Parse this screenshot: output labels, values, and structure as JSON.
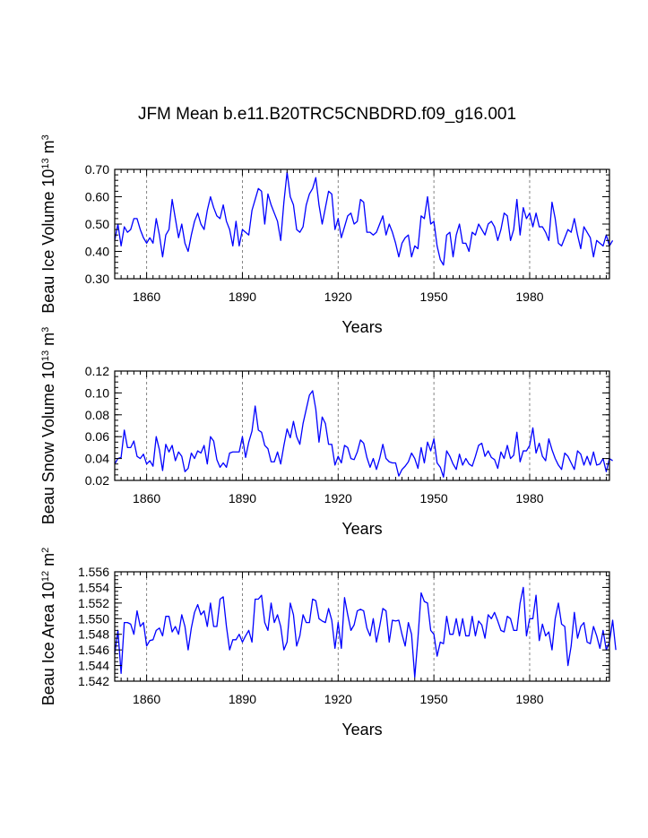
{
  "figure": {
    "title": "JFM Mean b.e11.B20TRC5CNBDRD.f09_g16.001",
    "line_color": "#0000ff",
    "vline_color": "#777777",
    "axis_color": "#000000"
  },
  "chart_data": [
    {
      "type": "line",
      "ylabel_main": "Beau Ice Volume 10",
      "ylabel_exp": "13",
      "ylabel_unit": " m",
      "ylabel_unit_exp": "3",
      "xlabel": "Years",
      "xlim": [
        1850,
        2005
      ],
      "ylim": [
        0.3,
        0.7
      ],
      "x_ticks": [
        1860,
        1890,
        1920,
        1950,
        1980
      ],
      "x_tick_labels": [
        "1860",
        "1890",
        "1920",
        "1950",
        "1980"
      ],
      "y_ticks": [
        0.3,
        0.4,
        0.5,
        0.6,
        0.7
      ],
      "y_tick_labels": [
        "0.30",
        "0.40",
        "0.50",
        "0.60",
        "0.70"
      ],
      "y_minor_step": 0.02,
      "vlines": [
        1860,
        1890,
        1920,
        1950,
        1980
      ],
      "x_start": 1850,
      "values": [
        0.44,
        0.5,
        0.42,
        0.49,
        0.47,
        0.48,
        0.52,
        0.52,
        0.48,
        0.45,
        0.43,
        0.45,
        0.43,
        0.52,
        0.46,
        0.38,
        0.46,
        0.48,
        0.59,
        0.52,
        0.45,
        0.5,
        0.43,
        0.4,
        0.46,
        0.51,
        0.54,
        0.5,
        0.48,
        0.55,
        0.6,
        0.56,
        0.53,
        0.52,
        0.57,
        0.51,
        0.48,
        0.42,
        0.51,
        0.42,
        0.48,
        0.47,
        0.46,
        0.55,
        0.59,
        0.63,
        0.62,
        0.5,
        0.61,
        0.57,
        0.54,
        0.51,
        0.44,
        0.58,
        0.69,
        0.6,
        0.57,
        0.48,
        0.47,
        0.49,
        0.57,
        0.61,
        0.63,
        0.67,
        0.57,
        0.5,
        0.56,
        0.62,
        0.61,
        0.48,
        0.52,
        0.45,
        0.49,
        0.53,
        0.54,
        0.5,
        0.51,
        0.59,
        0.58,
        0.47,
        0.47,
        0.46,
        0.47,
        0.5,
        0.53,
        0.46,
        0.5,
        0.47,
        0.43,
        0.38,
        0.43,
        0.45,
        0.46,
        0.38,
        0.42,
        0.41,
        0.53,
        0.52,
        0.6,
        0.5,
        0.51,
        0.42,
        0.37,
        0.35,
        0.46,
        0.47,
        0.38,
        0.46,
        0.5,
        0.43,
        0.43,
        0.4,
        0.47,
        0.46,
        0.5,
        0.48,
        0.46,
        0.5,
        0.51,
        0.49,
        0.44,
        0.48,
        0.54,
        0.53,
        0.44,
        0.48,
        0.59,
        0.46,
        0.56,
        0.52,
        0.54,
        0.49,
        0.54,
        0.49,
        0.49,
        0.47,
        0.44,
        0.58,
        0.52,
        0.43,
        0.42,
        0.45,
        0.48,
        0.47,
        0.52,
        0.46,
        0.41,
        0.49,
        0.47,
        0.45,
        0.38,
        0.44,
        0.43,
        0.42,
        0.46,
        0.42,
        0.44
      ]
    },
    {
      "type": "line",
      "ylabel_main": "Beau Snow Volume 10",
      "ylabel_exp": "13",
      "ylabel_unit": " m",
      "ylabel_unit_exp": "3",
      "xlabel": "Years",
      "xlim": [
        1850,
        2005
      ],
      "ylim": [
        0.02,
        0.12
      ],
      "x_ticks": [
        1860,
        1890,
        1920,
        1950,
        1980
      ],
      "x_tick_labels": [
        "1860",
        "1890",
        "1920",
        "1950",
        "1980"
      ],
      "y_ticks": [
        0.02,
        0.04,
        0.06,
        0.08,
        0.1,
        0.12
      ],
      "y_tick_labels": [
        "0.02",
        "0.04",
        "0.06",
        "0.08",
        "0.10",
        "0.12"
      ],
      "y_minor_step": 0.005,
      "vlines": [
        1860,
        1890,
        1920,
        1950,
        1980
      ],
      "x_start": 1850,
      "values": [
        0.035,
        0.04,
        0.041,
        0.066,
        0.05,
        0.05,
        0.056,
        0.042,
        0.04,
        0.044,
        0.035,
        0.038,
        0.033,
        0.06,
        0.048,
        0.029,
        0.053,
        0.046,
        0.052,
        0.038,
        0.046,
        0.042,
        0.028,
        0.031,
        0.045,
        0.04,
        0.047,
        0.045,
        0.052,
        0.035,
        0.06,
        0.056,
        0.039,
        0.032,
        0.036,
        0.032,
        0.045,
        0.046,
        0.046,
        0.046,
        0.06,
        0.041,
        0.055,
        0.065,
        0.088,
        0.066,
        0.064,
        0.052,
        0.049,
        0.037,
        0.037,
        0.046,
        0.035,
        0.052,
        0.067,
        0.059,
        0.074,
        0.06,
        0.053,
        0.072,
        0.085,
        0.098,
        0.102,
        0.085,
        0.055,
        0.078,
        0.072,
        0.053,
        0.053,
        0.034,
        0.042,
        0.036,
        0.052,
        0.05,
        0.04,
        0.039,
        0.046,
        0.057,
        0.054,
        0.041,
        0.032,
        0.04,
        0.03,
        0.04,
        0.053,
        0.04,
        0.037,
        0.036,
        0.036,
        0.024,
        0.03,
        0.033,
        0.037,
        0.045,
        0.04,
        0.031,
        0.05,
        0.036,
        0.055,
        0.047,
        0.058,
        0.036,
        0.032,
        0.023,
        0.047,
        0.042,
        0.035,
        0.03,
        0.044,
        0.034,
        0.04,
        0.035,
        0.033,
        0.042,
        0.052,
        0.054,
        0.042,
        0.047,
        0.041,
        0.039,
        0.031,
        0.046,
        0.04,
        0.052,
        0.04,
        0.043,
        0.064,
        0.037,
        0.047,
        0.047,
        0.052,
        0.068,
        0.045,
        0.054,
        0.042,
        0.038,
        0.058,
        0.048,
        0.04,
        0.034,
        0.03,
        0.045,
        0.042,
        0.036,
        0.03,
        0.047,
        0.044,
        0.034,
        0.042,
        0.034,
        0.046,
        0.034,
        0.035,
        0.04,
        0.028,
        0.04,
        0.038
      ]
    },
    {
      "type": "line",
      "ylabel_main": "Beau Ice Area 10",
      "ylabel_exp": "12",
      "ylabel_unit": " m",
      "ylabel_unit_exp": "2",
      "xlabel": "Years",
      "xlim": [
        1850,
        2005
      ],
      "ylim": [
        1.542,
        1.556
      ],
      "x_ticks": [
        1860,
        1890,
        1920,
        1950,
        1980
      ],
      "x_tick_labels": [
        "1860",
        "1890",
        "1920",
        "1950",
        "1980"
      ],
      "y_ticks": [
        1.542,
        1.544,
        1.546,
        1.548,
        1.55,
        1.552,
        1.554,
        1.556
      ],
      "y_tick_labels": [
        "1.542",
        "1.544",
        "1.546",
        "1.548",
        "1.550",
        "1.552",
        "1.554",
        "1.556"
      ],
      "y_minor_step": 0.0005,
      "vlines": [
        1860,
        1890,
        1920,
        1950,
        1980
      ],
      "x_start": 1850,
      "values": [
        1.5455,
        1.5485,
        1.543,
        1.5495,
        1.5495,
        1.5493,
        1.548,
        1.551,
        1.549,
        1.5495,
        1.5465,
        1.5472,
        1.5473,
        1.5485,
        1.5488,
        1.5478,
        1.5503,
        1.5503,
        1.5483,
        1.549,
        1.548,
        1.5505,
        1.549,
        1.546,
        1.5488,
        1.5508,
        1.5518,
        1.5505,
        1.551,
        1.549,
        1.552,
        1.549,
        1.549,
        1.5525,
        1.5528,
        1.549,
        1.546,
        1.5473,
        1.5473,
        1.548,
        1.547,
        1.5478,
        1.5485,
        1.547,
        1.5525,
        1.5525,
        1.553,
        1.5495,
        1.5485,
        1.552,
        1.5495,
        1.5505,
        1.549,
        1.546,
        1.547,
        1.552,
        1.5505,
        1.5465,
        1.5478,
        1.5505,
        1.5495,
        1.5495,
        1.5525,
        1.5523,
        1.55,
        1.5497,
        1.5495,
        1.5513,
        1.5498,
        1.5462,
        1.5495,
        1.5462,
        1.5527,
        1.5505,
        1.5485,
        1.5492,
        1.551,
        1.5512,
        1.551,
        1.5488,
        1.5478,
        1.55,
        1.547,
        1.549,
        1.5513,
        1.551,
        1.547,
        1.5498,
        1.5497,
        1.5498,
        1.548,
        1.5465,
        1.5495,
        1.548,
        1.5425,
        1.5475,
        1.5533,
        1.5522,
        1.552,
        1.5485,
        1.548,
        1.5452,
        1.547,
        1.5468,
        1.5503,
        1.548,
        1.548,
        1.55,
        1.5478,
        1.55,
        1.5478,
        1.5478,
        1.5503,
        1.5478,
        1.5497,
        1.5492,
        1.5475,
        1.5505,
        1.55,
        1.5508,
        1.5497,
        1.5485,
        1.5483,
        1.5503,
        1.55,
        1.5485,
        1.5485,
        1.552,
        1.554,
        1.5478,
        1.55,
        1.55,
        1.553,
        1.5472,
        1.5493,
        1.5478,
        1.5483,
        1.546,
        1.55,
        1.552,
        1.5493,
        1.549,
        1.544,
        1.5465,
        1.5508,
        1.5475,
        1.549,
        1.5495,
        1.547,
        1.5468,
        1.549,
        1.5478,
        1.5462,
        1.5485,
        1.546,
        1.547,
        1.5498,
        1.546
      ]
    }
  ]
}
